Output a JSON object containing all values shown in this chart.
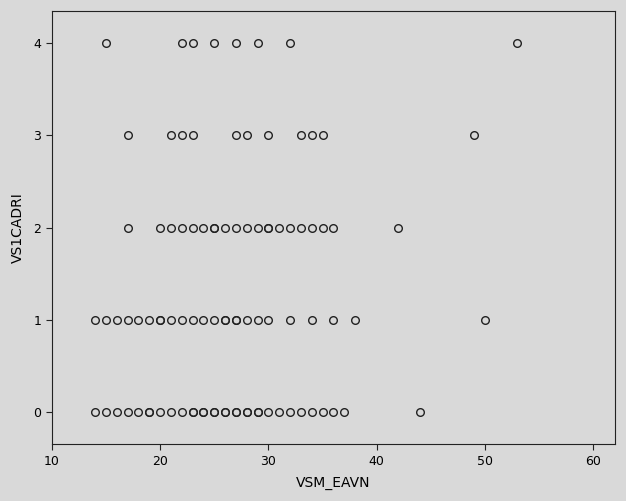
{
  "title": "",
  "xlabel": "VSM_EAVN",
  "ylabel": "VS1CADRI",
  "xlim": [
    10,
    62
  ],
  "ylim": [
    -0.35,
    4.35
  ],
  "xticks": [
    10,
    20,
    30,
    40,
    50,
    60
  ],
  "yticks": [
    0,
    1,
    2,
    3,
    4
  ],
  "background_color": "#d9d9d9",
  "plot_bg_color": "#d9d9d9",
  "marker_color": "none",
  "marker_edge_color": "#222222",
  "marker_size": 5.5,
  "marker_linewidth": 1.0,
  "points_y0_x": [
    14,
    15,
    16,
    17,
    18,
    19,
    19,
    20,
    21,
    22,
    23,
    23,
    24,
    24,
    25,
    25,
    26,
    26,
    27,
    27,
    28,
    28,
    29,
    29,
    30,
    31,
    32,
    33,
    34,
    35,
    36,
    37,
    44
  ],
  "points_y1_x": [
    14,
    15,
    16,
    17,
    18,
    19,
    20,
    20,
    21,
    22,
    23,
    24,
    25,
    26,
    26,
    27,
    27,
    28,
    29,
    30,
    32,
    34,
    36,
    38,
    50
  ],
  "points_y2_x": [
    17,
    20,
    21,
    22,
    23,
    24,
    25,
    25,
    26,
    27,
    28,
    29,
    30,
    30,
    31,
    32,
    33,
    34,
    35,
    36,
    42
  ],
  "points_y3_x": [
    17,
    21,
    22,
    23,
    27,
    28,
    30,
    33,
    34,
    35,
    49
  ],
  "points_y4_x": [
    15,
    22,
    23,
    25,
    27,
    29,
    32,
    53
  ]
}
